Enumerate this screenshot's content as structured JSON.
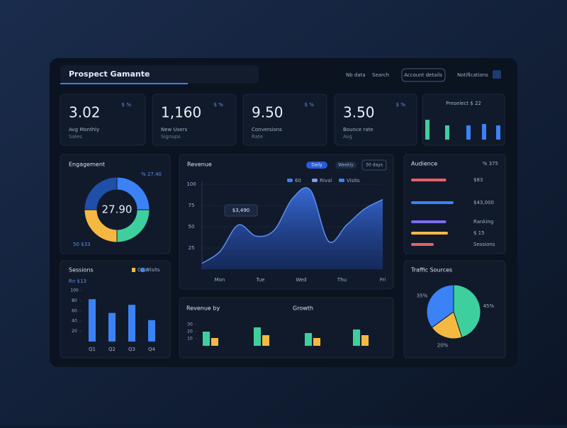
{
  "header": {
    "title": "Prospect Gamante",
    "nav": [
      "Nb data",
      "Search",
      "Account details",
      "Notifications"
    ]
  },
  "kpis": [
    {
      "value": "3.02",
      "delta": "$ %",
      "label": "Avg Monthly",
      "sub": "Sales"
    },
    {
      "value": "1,160",
      "delta": "$ %",
      "label": "New Users",
      "sub": "Signups"
    },
    {
      "value": "9.50",
      "delta": "$ %",
      "label": "Conversions",
      "sub": "Rate"
    },
    {
      "value": "3.50",
      "delta": "$ %",
      "label": "Bounce rate",
      "sub": "Avg"
    }
  ],
  "activity": {
    "title": "Preselect $ 22",
    "values": [
      28,
      20,
      20,
      22,
      20
    ],
    "colors": [
      "#3ecf9e",
      "#3ecf9e",
      "#3b82f6",
      "#3b82f6",
      "#3b82f6"
    ]
  },
  "engagement": {
    "title": "Engagement",
    "note": "% 27.40",
    "center": "27.90",
    "legend": "50 $33",
    "values": [
      25,
      25,
      25,
      25
    ],
    "colors": [
      "#3b82f6",
      "#3ecf9e",
      "#f5b942",
      "#1f4fa8"
    ]
  },
  "revenue": {
    "title": "Revenue",
    "tabs": [
      "Daily",
      "Weekly"
    ],
    "range": "30 days",
    "legend": [
      "60",
      "Rival",
      "Visits"
    ],
    "tooltip": "$3,490",
    "ylim": [
      0,
      100
    ],
    "yticks": [
      25,
      50,
      75,
      100
    ],
    "x_labels": [
      "Mon",
      "Tue",
      "Wed",
      "Thu",
      "Fri"
    ],
    "values": [
      7,
      21,
      52,
      39,
      46,
      83,
      93,
      33,
      52,
      71,
      82
    ],
    "color": "#3b82f6"
  },
  "sessions": {
    "title": "Sessions",
    "legend": [
      "Goal",
      "Visits"
    ],
    "note": "Rn $13",
    "ylim": [
      0,
      100
    ],
    "yticks": [
      20,
      40,
      60,
      80,
      100
    ],
    "categories": [
      "Q1",
      "Q2",
      "Q3",
      "Q4"
    ],
    "values": [
      83,
      56,
      72,
      42
    ],
    "color": "#3b82f6"
  },
  "growth": {
    "title": "Revenue by",
    "subtitle": "Growth",
    "ylim": [
      0,
      40
    ],
    "yticks": [
      10,
      20,
      30
    ],
    "series": [
      {
        "values": [
          20,
          26,
          18,
          23
        ],
        "color": "#3ecf9e"
      },
      {
        "values": [
          11,
          15,
          11,
          15
        ],
        "color": "#f5b942"
      }
    ]
  },
  "audience": {
    "title": "Audience",
    "note": "% 375",
    "rows": [
      {
        "label": "$83",
        "value": 62,
        "color": "#e8606a"
      },
      {
        "label": "$43,000",
        "value": 75,
        "color": "#3b82f6"
      },
      {
        "label": "Ranking",
        "value": 62,
        "color": "#7c6cf0"
      },
      {
        "label": "$ 15",
        "value": 65,
        "color": "#f5b942"
      },
      {
        "label": "Sessions",
        "value": 40,
        "color": "#e8606a"
      }
    ]
  },
  "traffic": {
    "title": "Traffic Sources",
    "values": [
      45,
      20,
      35
    ],
    "labels": [
      "45%",
      "20%",
      "35%"
    ],
    "colors": [
      "#3ecf9e",
      "#f5b942",
      "#3b82f6"
    ]
  }
}
